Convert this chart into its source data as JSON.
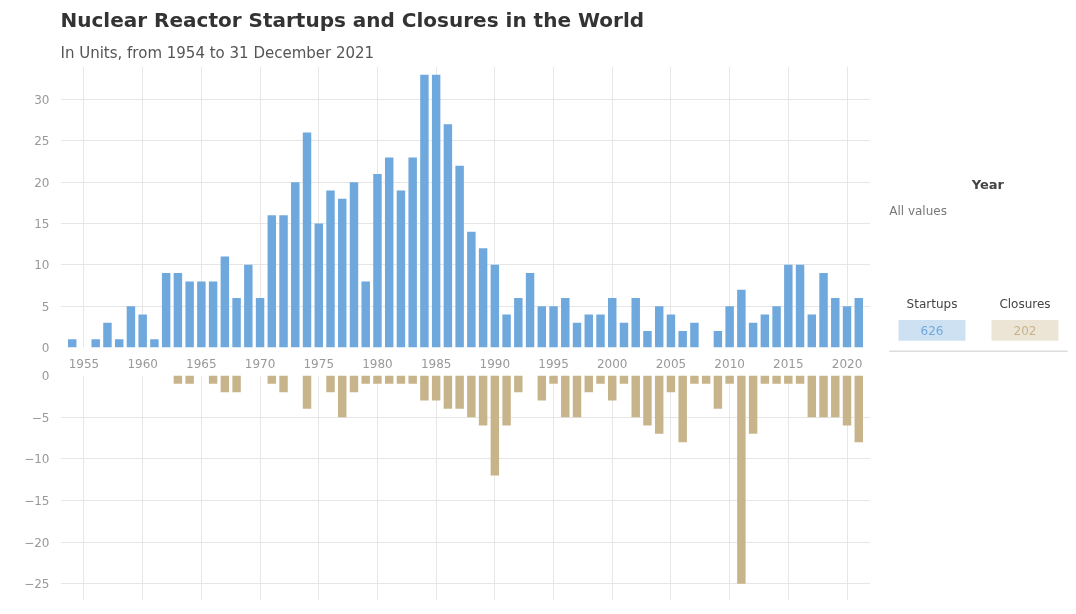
{
  "chart_data": [
    {
      "type": "bar",
      "title": "Nuclear Reactor Startups and Closures in the World",
      "subtitle": "In Units, from 1954 to 31 December 2021",
      "x": [
        1954,
        1955,
        1956,
        1957,
        1958,
        1959,
        1960,
        1961,
        1962,
        1963,
        1964,
        1965,
        1966,
        1967,
        1968,
        1969,
        1970,
        1971,
        1972,
        1973,
        1974,
        1975,
        1976,
        1977,
        1978,
        1979,
        1980,
        1981,
        1982,
        1983,
        1984,
        1985,
        1986,
        1987,
        1988,
        1989,
        1990,
        1991,
        1992,
        1993,
        1994,
        1995,
        1996,
        1997,
        1998,
        1999,
        2000,
        2001,
        2002,
        2003,
        2004,
        2005,
        2006,
        2007,
        2008,
        2009,
        2010,
        2011,
        2012,
        2013,
        2014,
        2015,
        2016,
        2017,
        2018,
        2019,
        2020,
        2021
      ],
      "series": [
        {
          "name": "Startups",
          "color": "#6fa8dc",
          "values": [
            1,
            0,
            1,
            3,
            1,
            5,
            4,
            1,
            9,
            9,
            8,
            8,
            8,
            11,
            6,
            10,
            6,
            16,
            16,
            20,
            26,
            15,
            19,
            18,
            20,
            8,
            21,
            23,
            19,
            23,
            33,
            33,
            27,
            22,
            14,
            12,
            10,
            4,
            6,
            9,
            5,
            5,
            6,
            3,
            4,
            4,
            6,
            3,
            6,
            2,
            5,
            4,
            2,
            3,
            0,
            2,
            5,
            7,
            3,
            4,
            5,
            10,
            10,
            4,
            9,
            6,
            5,
            6
          ]
        }
      ],
      "xlim": [
        1953,
        2022
      ],
      "xticks": [
        1955,
        1960,
        1965,
        1970,
        1975,
        1980,
        1985,
        1990,
        1995,
        2000,
        2005,
        2010,
        2015,
        2020
      ],
      "ylim": [
        0,
        34
      ],
      "yticks": [
        0,
        5,
        10,
        15,
        20,
        25,
        30
      ],
      "grid": true,
      "legend": "right",
      "annotations": [
        "Year",
        "All values",
        "626"
      ]
    },
    {
      "type": "bar",
      "x": [
        1954,
        1955,
        1956,
        1957,
        1958,
        1959,
        1960,
        1961,
        1962,
        1963,
        1964,
        1965,
        1966,
        1967,
        1968,
        1969,
        1970,
        1971,
        1972,
        1973,
        1974,
        1975,
        1976,
        1977,
        1978,
        1979,
        1980,
        1981,
        1982,
        1983,
        1984,
        1985,
        1986,
        1987,
        1988,
        1989,
        1990,
        1991,
        1992,
        1993,
        1994,
        1995,
        1996,
        1997,
        1998,
        1999,
        2000,
        2001,
        2002,
        2003,
        2004,
        2005,
        2006,
        2007,
        2008,
        2009,
        2010,
        2011,
        2012,
        2013,
        2014,
        2015,
        2016,
        2017,
        2018,
        2019,
        2020,
        2021
      ],
      "series": [
        {
          "name": "Closures",
          "color": "#c8b48a",
          "values": [
            0,
            0,
            0,
            0,
            0,
            0,
            0,
            0,
            0,
            -1,
            -1,
            0,
            -1,
            -2,
            -2,
            0,
            0,
            -1,
            -2,
            0,
            -4,
            0,
            -2,
            -5,
            -2,
            -1,
            -1,
            -1,
            -1,
            -1,
            -3,
            -3,
            -4,
            -4,
            -5,
            -6,
            -12,
            -6,
            -2,
            0,
            -3,
            -1,
            -5,
            -5,
            -2,
            -1,
            -3,
            -1,
            -5,
            -6,
            -7,
            -2,
            -8,
            -1,
            -1,
            -4,
            -1,
            -25,
            -7,
            -1,
            -1,
            -1,
            -1,
            -5,
            -5,
            -5,
            -6,
            -8
          ]
        }
      ],
      "xlim": [
        1953,
        2022
      ],
      "xticks": [
        1955,
        1960,
        1965,
        1970,
        1975,
        1980,
        1985,
        1990,
        1995,
        2000,
        2005,
        2010,
        2015,
        2020
      ],
      "ylim": [
        -27,
        0
      ],
      "yticks": [
        0,
        -5,
        -10,
        -15,
        -20,
        -25
      ],
      "grid": true,
      "legend": "right",
      "tick_labels": "y",
      "annotations": [
        "202"
      ]
    }
  ]
}
